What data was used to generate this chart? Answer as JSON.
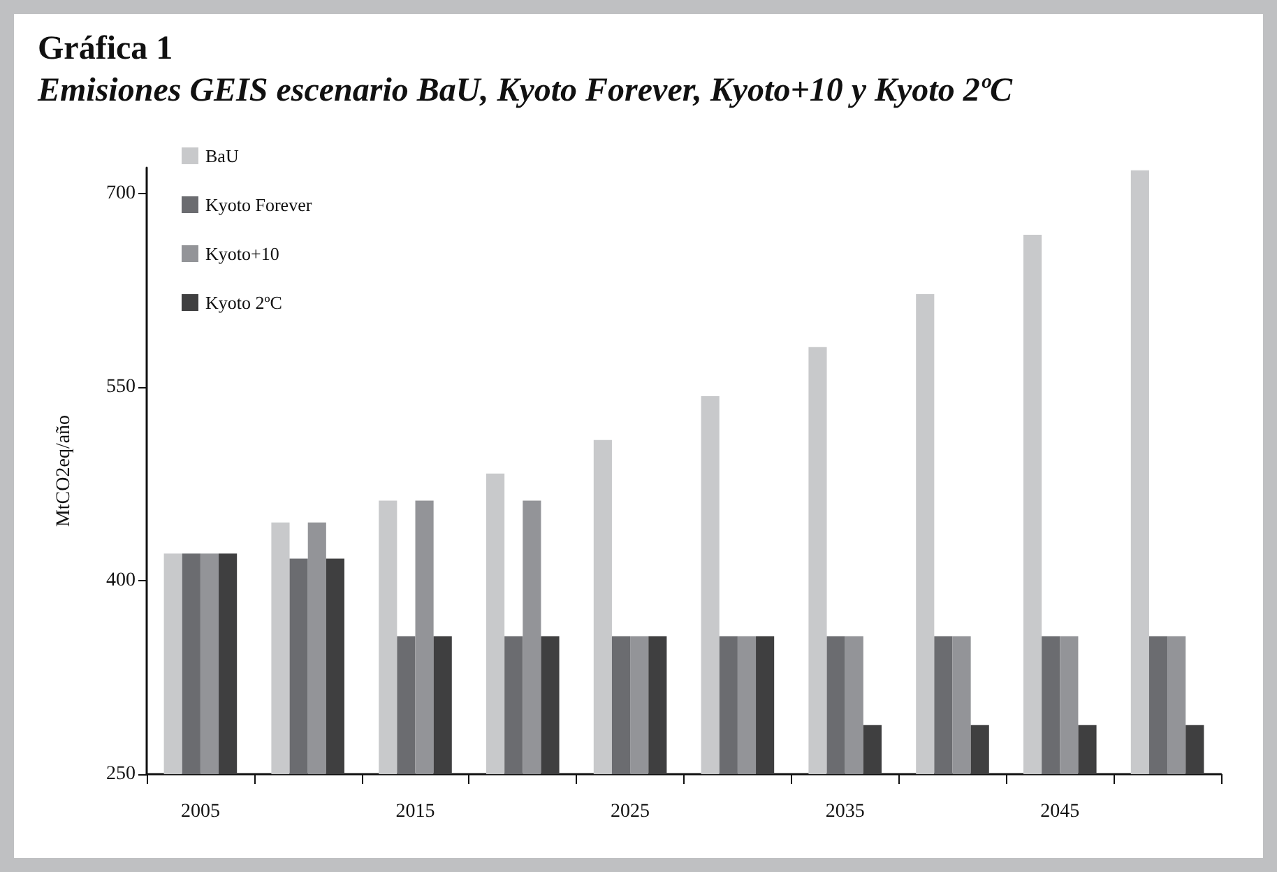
{
  "chart_data": {
    "type": "bar",
    "title": "Gráfica 1",
    "subtitle": "Emisiones GEIS escenario BaU, Kyoto Forever, Kyoto+10 y Kyoto 2ºC",
    "ylabel": "MtCO2eq/año",
    "categories": [
      "2005",
      null,
      "2015",
      null,
      "2025",
      null,
      "2035",
      null,
      "2045",
      null
    ],
    "series": [
      {
        "name": "BaU",
        "color": "#c8c9cb",
        "values": [
          421,
          445,
          462,
          483,
          509,
          543,
          581,
          622,
          668,
          718
        ]
      },
      {
        "name": "Kyoto Forever",
        "color": "#6b6c70",
        "values": [
          421,
          417,
          357,
          357,
          357,
          357,
          357,
          357,
          357,
          357
        ]
      },
      {
        "name": "Kyoto+10",
        "color": "#939498",
        "values": [
          421,
          445,
          462,
          462,
          357,
          357,
          357,
          357,
          357,
          357
        ]
      },
      {
        "name": "Kyoto 2ºC",
        "color": "#3f3f40",
        "values": [
          421,
          417,
          357,
          357,
          357,
          357,
          288,
          288,
          288,
          288
        ]
      }
    ],
    "ylim": [
      250,
      720
    ],
    "yticks": [
      250,
      400,
      550,
      700
    ],
    "grid": false,
    "legend": "top left"
  }
}
